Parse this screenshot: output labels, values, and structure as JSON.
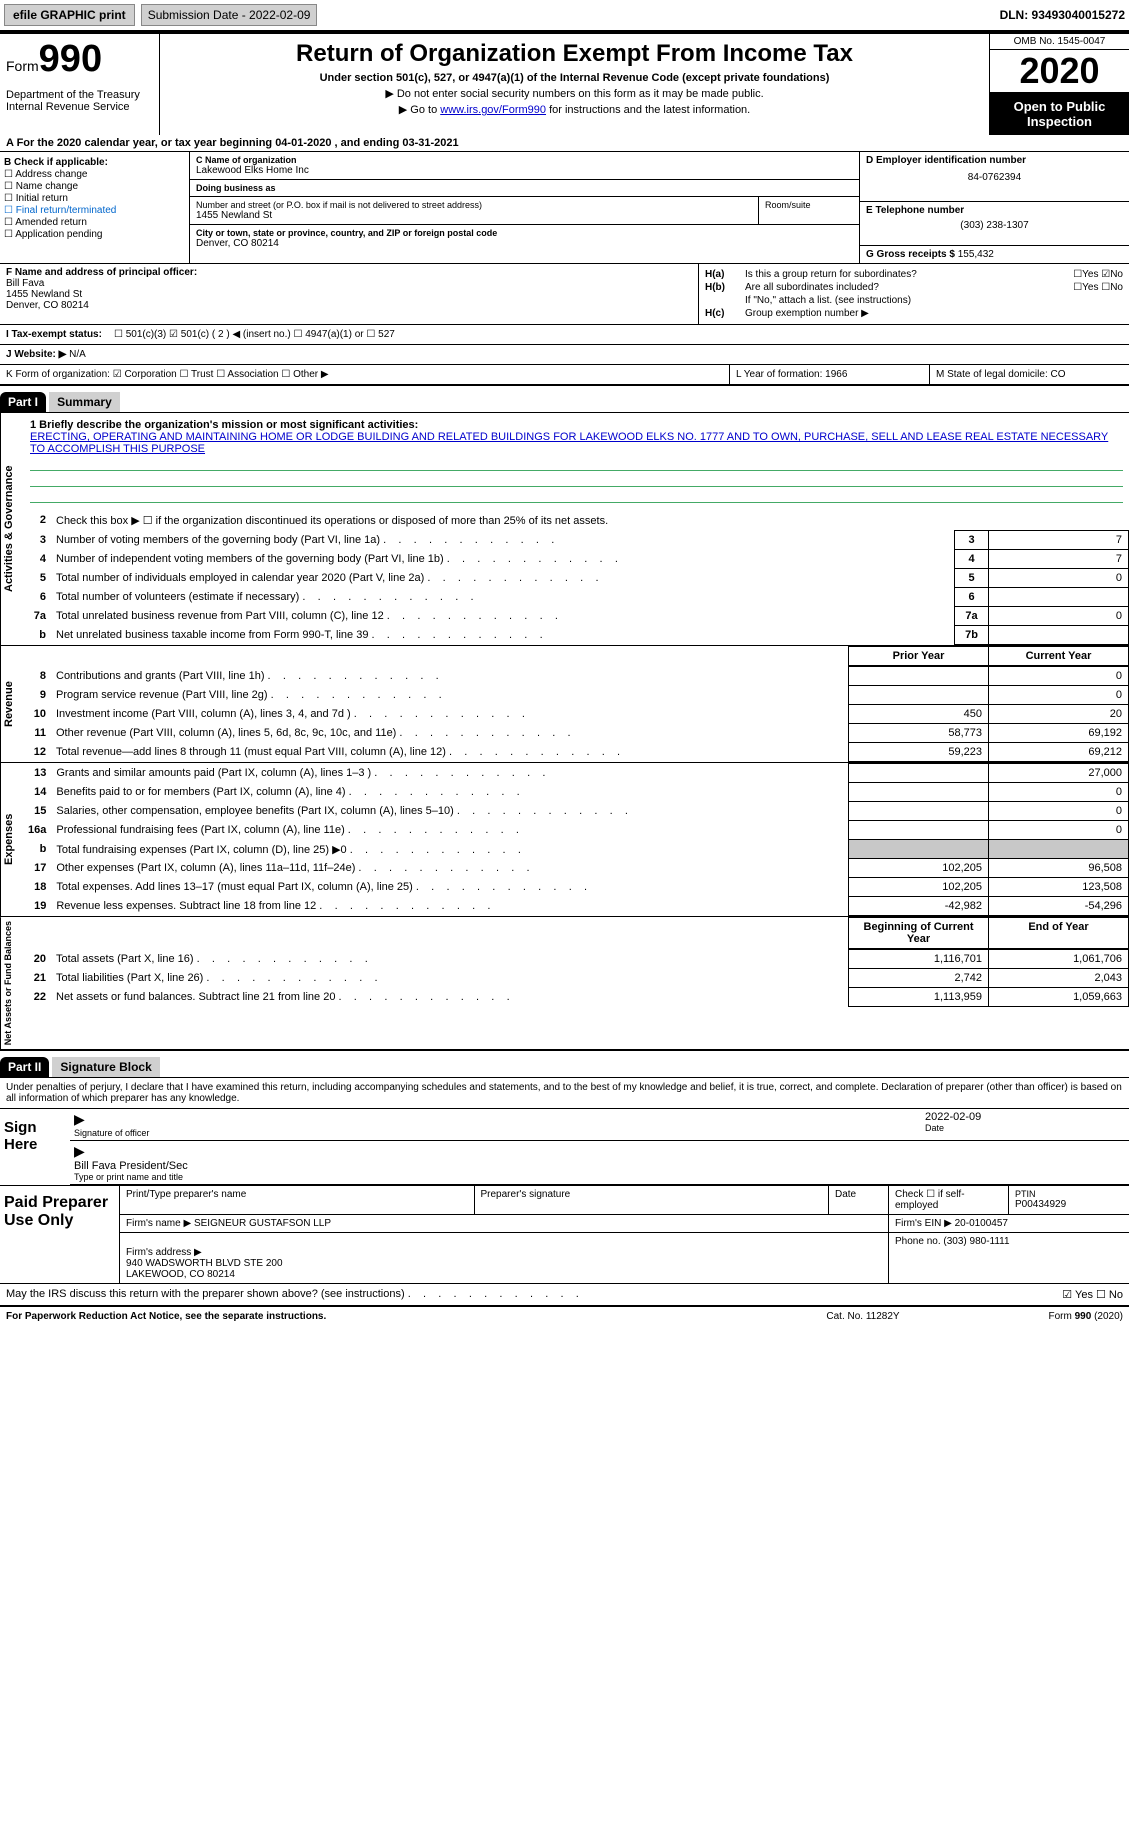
{
  "topbar": {
    "efile": "efile GRAPHIC print",
    "submission": "Submission Date - 2022-02-09",
    "dln": "DLN: 93493040015272"
  },
  "header": {
    "form_prefix": "Form",
    "form_num": "990",
    "dept": "Department of the Treasury\nInternal Revenue Service",
    "title": "Return of Organization Exempt From Income Tax",
    "subtitle": "Under section 501(c), 527, or 4947(a)(1) of the Internal Revenue Code (except private foundations)",
    "note1": "▶ Do not enter social security numbers on this form as it may be made public.",
    "note2_pre": "▶ Go to ",
    "note2_link": "www.irs.gov/Form990",
    "note2_post": " for instructions and the latest information.",
    "omb": "OMB No. 1545-0047",
    "year": "2020",
    "inspect": "Open to Public Inspection"
  },
  "taxyear": "A For the 2020 calendar year, or tax year beginning 04-01-2020    , and ending 03-31-2021",
  "B": {
    "title": "B Check if applicable:",
    "items": [
      "Address change",
      "Name change",
      "Initial return",
      "Final return/terminated",
      "Amended return",
      "Application pending"
    ]
  },
  "C": {
    "name_lbl": "C Name of organization",
    "name": "Lakewood Elks Home Inc",
    "dba_lbl": "Doing business as",
    "dba": "",
    "addr_lbl": "Number and street (or P.O. box if mail is not delivered to street address)",
    "addr": "1455 Newland St",
    "room_lbl": "Room/suite",
    "city_lbl": "City or town, state or province, country, and ZIP or foreign postal code",
    "city": "Denver, CO  80214"
  },
  "D": {
    "lbl": "D Employer identification number",
    "val": "84-0762394"
  },
  "E": {
    "lbl": "E Telephone number",
    "val": "(303) 238-1307"
  },
  "G": {
    "lbl": "G Gross receipts $",
    "val": "155,432"
  },
  "F": {
    "lbl": "F  Name and address of principal officer:",
    "name": "Bill Fava",
    "addr1": "1455 Newland St",
    "addr2": "Denver, CO  80214"
  },
  "H": {
    "ha_lbl": "H(a)",
    "ha_txt": "Is this a group return for subordinates?",
    "ha_yn": "☐Yes ☑No",
    "hb_lbl": "H(b)",
    "hb_txt": "Are all subordinates included?",
    "hb_yn": "☐Yes ☐No",
    "hb_note": "If \"No,\" attach a list. (see instructions)",
    "hc_lbl": "H(c)",
    "hc_txt": "Group exemption number ▶"
  },
  "I": {
    "lbl": "I    Tax-exempt status:",
    "opts": "☐ 501(c)(3)   ☑ 501(c) ( 2 ) ◀ (insert no.)    ☐ 4947(a)(1) or   ☐ 527"
  },
  "J": {
    "lbl": "J   Website: ▶",
    "val": "N/A"
  },
  "K": {
    "txt": "K Form of organization:  ☑ Corporation  ☐ Trust  ☐ Association  ☐ Other ▶"
  },
  "L": {
    "txt": "L Year of formation: 1966"
  },
  "M": {
    "txt": "M State of legal domicile: CO"
  },
  "part1": {
    "hdr": "Part I",
    "title": "Summary"
  },
  "mission": {
    "lbl": "1  Briefly describe the organization's mission or most significant activities:",
    "text": "ERECTING, OPERATING AND MAINTAINING HOME OR LODGE BUILDING AND RELATED BUILDINGS FOR LAKEWOOD ELKS NO. 1777 AND TO OWN, PURCHASE, SELL AND LEASE REAL ESTATE NECESSARY TO ACCOMPLISH THIS PURPOSE"
  },
  "line2": "Check this box ▶ ☐  if the organization discontinued its operations or disposed of more than 25% of its net assets.",
  "sections": {
    "gov": "Activities & Governance",
    "rev": "Revenue",
    "exp": "Expenses",
    "net": "Net Assets or Fund Balances"
  },
  "govrows": [
    {
      "n": "3",
      "d": "Number of voting members of the governing body (Part VI, line 1a)",
      "b": "3",
      "v": "7"
    },
    {
      "n": "4",
      "d": "Number of independent voting members of the governing body (Part VI, line 1b)",
      "b": "4",
      "v": "7"
    },
    {
      "n": "5",
      "d": "Total number of individuals employed in calendar year 2020 (Part V, line 2a)",
      "b": "5",
      "v": "0"
    },
    {
      "n": "6",
      "d": "Total number of volunteers (estimate if necessary)",
      "b": "6",
      "v": ""
    },
    {
      "n": "7a",
      "d": "Total unrelated business revenue from Part VIII, column (C), line 12",
      "b": "7a",
      "v": "0"
    },
    {
      "n": "b",
      "d": "Net unrelated business taxable income from Form 990-T, line 39",
      "b": "7b",
      "v": ""
    }
  ],
  "colheaders": {
    "prior": "Prior Year",
    "current": "Current Year"
  },
  "revrows": [
    {
      "n": "8",
      "d": "Contributions and grants (Part VIII, line 1h)",
      "p": "",
      "c": "0"
    },
    {
      "n": "9",
      "d": "Program service revenue (Part VIII, line 2g)",
      "p": "",
      "c": "0"
    },
    {
      "n": "10",
      "d": "Investment income (Part VIII, column (A), lines 3, 4, and 7d )",
      "p": "450",
      "c": "20"
    },
    {
      "n": "11",
      "d": "Other revenue (Part VIII, column (A), lines 5, 6d, 8c, 9c, 10c, and 11e)",
      "p": "58,773",
      "c": "69,192"
    },
    {
      "n": "12",
      "d": "Total revenue—add lines 8 through 11 (must equal Part VIII, column (A), line 12)",
      "p": "59,223",
      "c": "69,212"
    }
  ],
  "exprows": [
    {
      "n": "13",
      "d": "Grants and similar amounts paid (Part IX, column (A), lines 1–3 )",
      "p": "",
      "c": "27,000"
    },
    {
      "n": "14",
      "d": "Benefits paid to or for members (Part IX, column (A), line 4)",
      "p": "",
      "c": "0"
    },
    {
      "n": "15",
      "d": "Salaries, other compensation, employee benefits (Part IX, column (A), lines 5–10)",
      "p": "",
      "c": "0"
    },
    {
      "n": "16a",
      "d": "Professional fundraising fees (Part IX, column (A), line 11e)",
      "p": "",
      "c": "0"
    },
    {
      "n": "b",
      "d": "Total fundraising expenses (Part IX, column (D), line 25) ▶0",
      "p": "GRAY",
      "c": "GRAY"
    },
    {
      "n": "17",
      "d": "Other expenses (Part IX, column (A), lines 11a–11d, 11f–24e)",
      "p": "102,205",
      "c": "96,508"
    },
    {
      "n": "18",
      "d": "Total expenses. Add lines 13–17 (must equal Part IX, column (A), line 25)",
      "p": "102,205",
      "c": "123,508"
    },
    {
      "n": "19",
      "d": "Revenue less expenses. Subtract line 18 from line 12",
      "p": "-42,982",
      "c": "-54,296"
    }
  ],
  "netheaders": {
    "begin": "Beginning of Current Year",
    "end": "End of Year"
  },
  "netrows": [
    {
      "n": "20",
      "d": "Total assets (Part X, line 16)",
      "p": "1,116,701",
      "c": "1,061,706"
    },
    {
      "n": "21",
      "d": "Total liabilities (Part X, line 26)",
      "p": "2,742",
      "c": "2,043"
    },
    {
      "n": "22",
      "d": "Net assets or fund balances. Subtract line 21 from line 20",
      "p": "1,113,959",
      "c": "1,059,663"
    }
  ],
  "part2": {
    "hdr": "Part II",
    "title": "Signature Block"
  },
  "sigtext": "Under penalties of perjury, I declare that I have examined this return, including accompanying schedules and statements, and to the best of my knowledge and belief, it is true, correct, and complete. Declaration of preparer (other than officer) is based on all information of which preparer has any knowledge.",
  "sign": {
    "here": "Sign Here",
    "officer_lbl": "Signature of officer",
    "date_lbl": "Date",
    "date": "2022-02-09",
    "name": "Bill Fava  President/Sec",
    "name_lbl": "Type or print name and title"
  },
  "paid": {
    "lbl": "Paid Preparer Use Only",
    "h1": "Print/Type preparer's name",
    "h2": "Preparer's signature",
    "h3": "Date",
    "h4": "Check ☐ if self-employed",
    "h5_lbl": "PTIN",
    "h5": "P00434929",
    "firm_lbl": "Firm's name    ▶",
    "firm": "SEIGNEUR GUSTAFSON LLP",
    "ein_lbl": "Firm's EIN ▶",
    "ein": "20-0100457",
    "addr_lbl": "Firm's address ▶",
    "addr": "940 WADSWORTH BLVD STE 200\nLAKEWOOD, CO  80214",
    "phone_lbl": "Phone no.",
    "phone": "(303) 980-1111"
  },
  "discuss": "May the IRS discuss this return with the preparer shown above? (see instructions)",
  "discuss_yn": "☑ Yes  ☐ No",
  "footer": {
    "pra": "For Paperwork Reduction Act Notice, see the separate instructions.",
    "cat": "Cat. No. 11282Y",
    "form": "Form 990 (2020)"
  }
}
